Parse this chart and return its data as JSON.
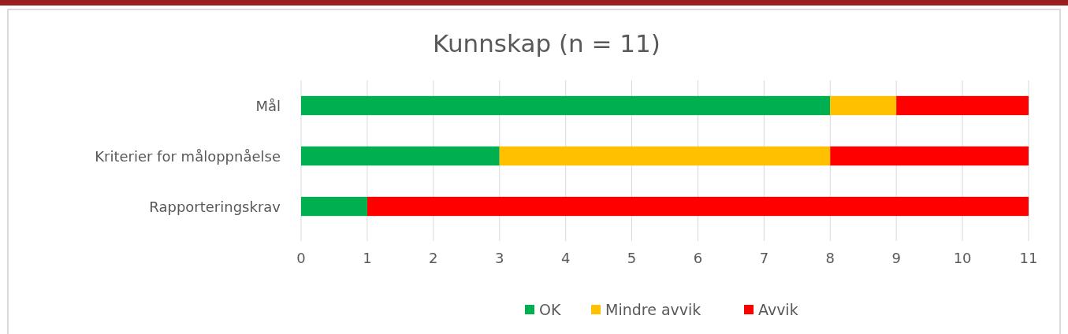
{
  "chart_data": {
    "type": "bar",
    "orientation": "horizontal",
    "stacked": true,
    "title": "Kunnskap (n = 11)",
    "categories": [
      "Mål",
      "Kriterier for måloppnåelse",
      "Rapporteringskrav"
    ],
    "series": [
      {
        "name": "OK",
        "color": "#00b050",
        "values": [
          8,
          3,
          1
        ]
      },
      {
        "name": "Mindre avvik",
        "color": "#ffc000",
        "values": [
          1,
          5,
          0
        ]
      },
      {
        "name": "Avvik",
        "color": "#ff0000",
        "values": [
          2,
          3,
          10
        ]
      }
    ],
    "xlim": [
      0,
      11
    ],
    "xticks": [
      0,
      1,
      2,
      3,
      4,
      5,
      6,
      7,
      8,
      9,
      10,
      11
    ],
    "grid": "x",
    "legend": "bottom"
  }
}
